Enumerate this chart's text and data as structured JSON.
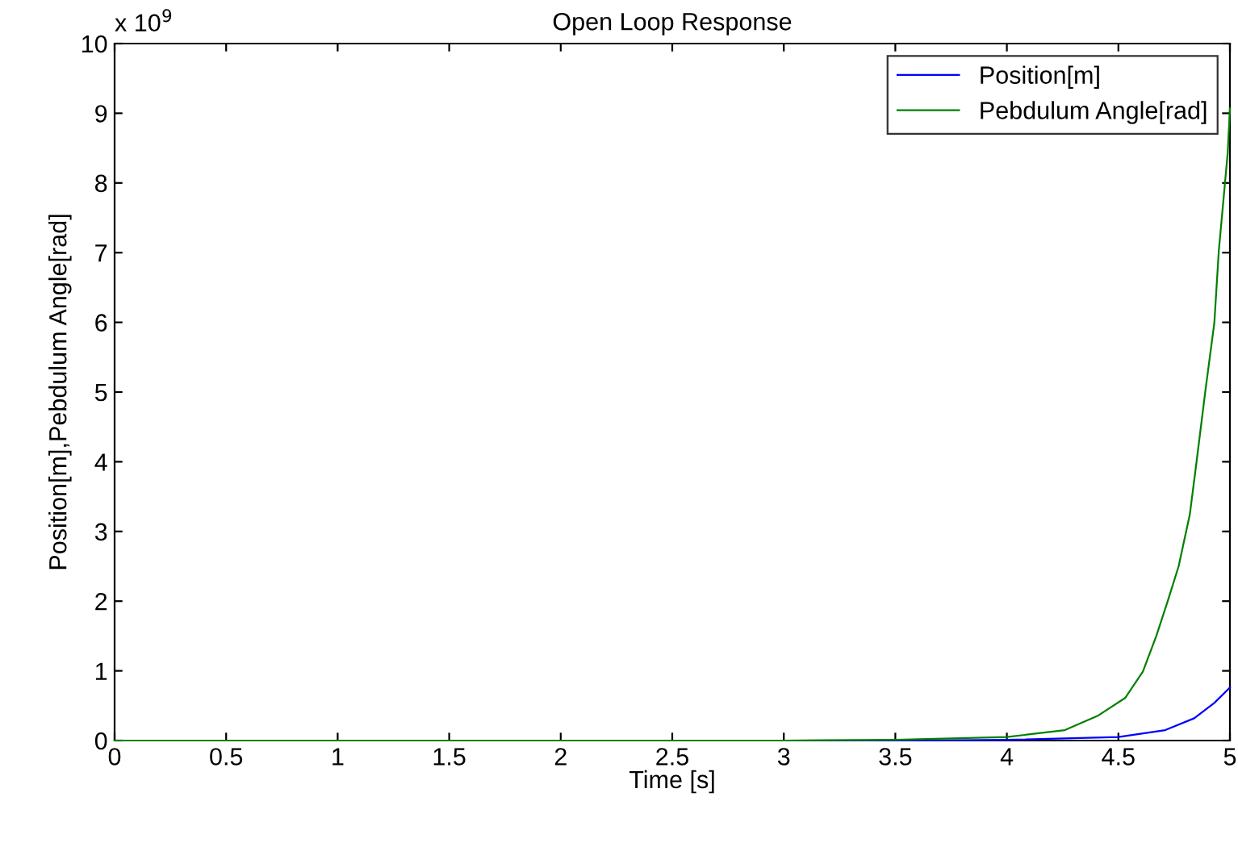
{
  "chart_data": {
    "type": "line",
    "title": "Open Loop Response",
    "xlabel": "Time [s]",
    "ylabel": "Position[m],Pebdulum Angle[rad]",
    "annotations": [
      "x 10$^{9}$"
    ],
    "xlim": [
      0,
      5
    ],
    "ylim": [
      0,
      10
    ],
    "xticks": [
      0,
      0.5,
      1,
      1.5,
      2,
      2.5,
      3,
      3.5,
      4,
      4.5,
      5
    ],
    "yticks": [
      0,
      1,
      2,
      3,
      4,
      5,
      6,
      7,
      8,
      9,
      10
    ],
    "grid": false,
    "legend": "top right",
    "marker": "none",
    "line_style": "solid",
    "series": [
      {
        "name": "Position[m]",
        "color": "#0000ff",
        "x": [
          3,
          3.5,
          4.0,
          4.5,
          4.71,
          4.84,
          4.93,
          5.0
        ],
        "values": [
          0,
          0,
          0.01,
          0.05,
          0.15,
          0.32,
          0.54,
          0.76
        ]
      },
      {
        "name": "Pebdulum Angle[rad]",
        "color": "#008000",
        "x": [
          0,
          1,
          2,
          3,
          3.5,
          4.0,
          4.26,
          4.41,
          4.53,
          4.61,
          4.67,
          4.72,
          4.77,
          4.82,
          4.85,
          4.89,
          4.93,
          4.95,
          4.99,
          5.0
        ],
        "values": [
          0,
          0,
          0,
          0,
          0.01,
          0.05,
          0.15,
          0.36,
          0.61,
          0.99,
          1.5,
          1.99,
          2.5,
          3.24,
          3.99,
          5.02,
          5.99,
          7.02,
          8.43,
          9.07
        ]
      }
    ]
  }
}
